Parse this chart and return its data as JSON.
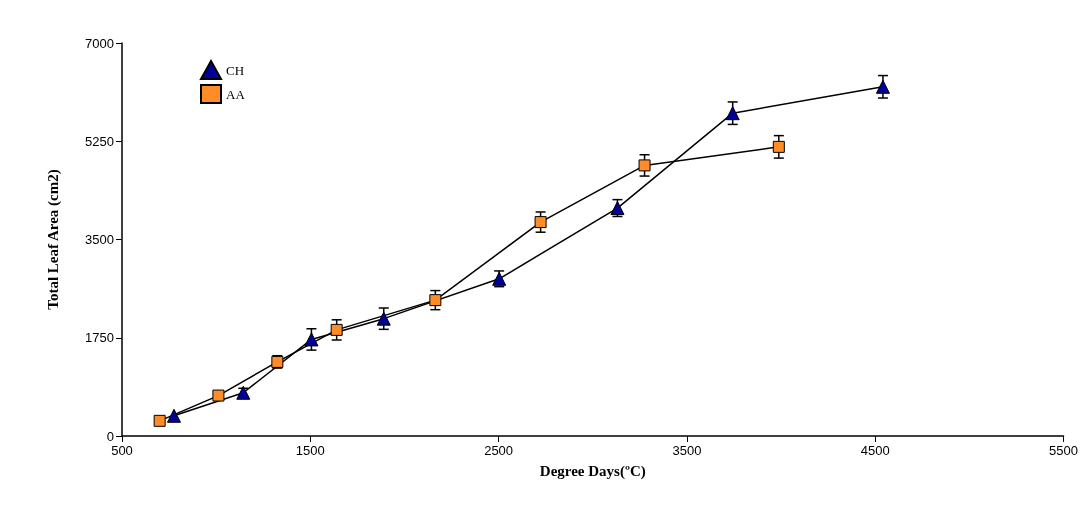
{
  "chart_data": {
    "type": "line",
    "xlabel": "Degree Days(ºC)",
    "ylabel": "Total Leaf Area (cm2)",
    "xlim": [
      500,
      5500
    ],
    "xticks": [
      500,
      1500,
      2500,
      3500,
      4500,
      5500
    ],
    "ylim": [
      0,
      7000
    ],
    "yticks": [
      0,
      1750,
      3500,
      5250,
      7000
    ],
    "grid": false,
    "legend": "top left",
    "line_style": "solid",
    "series": [
      {
        "name": "CH",
        "color": "#000099",
        "marker": "triangle",
        "x": [
          776,
          1144,
          1506,
          1890,
          2503,
          3131,
          3743,
          4541
        ],
        "values": [
          360,
          770,
          1720,
          2090,
          2800,
          4060,
          5750,
          6220
        ],
        "errors": [
          null,
          80,
          190,
          190,
          140,
          150,
          200,
          200
        ]
      },
      {
        "name": "AA",
        "color": "#ff8c26",
        "marker": "square",
        "x": [
          700,
          1012,
          1325,
          1640,
          2164,
          2723,
          3275,
          3988
        ],
        "values": [
          270,
          720,
          1320,
          1890,
          2420,
          3810,
          4820,
          5150
        ],
        "errors": [
          null,
          null,
          110,
          180,
          170,
          180,
          190,
          200
        ]
      }
    ]
  }
}
